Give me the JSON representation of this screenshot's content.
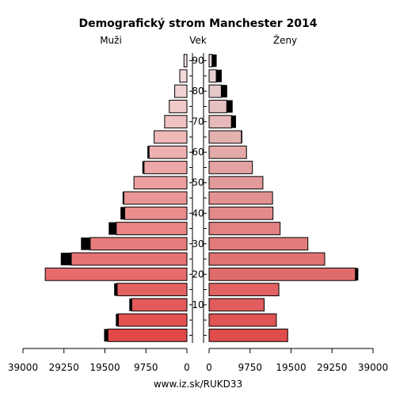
{
  "chart_data": {
    "type": "bar",
    "title": "Demografický strom Manchester 2014",
    "left_label": "Muži",
    "center_label": "Vek",
    "right_label": "Ženy",
    "footer": "www.iz.sk/RUKD33",
    "x_ticks_left": [
      "39000",
      "29250",
      "19500",
      "9750",
      "0"
    ],
    "x_ticks_right": [
      "0",
      "9750",
      "19500",
      "29250",
      "39000"
    ],
    "x_tick_values": [
      39000,
      29250,
      19500,
      9750,
      0
    ],
    "xlim": [
      0,
      39000
    ],
    "age_ticks": [
      "10",
      "20",
      "30",
      "40",
      "50",
      "60",
      "70",
      "80",
      "90"
    ],
    "age_tick_groups": [
      2,
      4,
      6,
      8,
      10,
      12,
      14,
      16,
      18
    ],
    "age_groups": [
      "0-4",
      "5-9",
      "10-14",
      "15-19",
      "20-24",
      "25-29",
      "30-34",
      "35-39",
      "40-44",
      "45-49",
      "50-54",
      "55-59",
      "60-64",
      "65-69",
      "70-74",
      "75-79",
      "80-84",
      "85-89",
      "90+"
    ],
    "series": [
      {
        "name": "Muži",
        "values": [
          18800,
          16300,
          13100,
          16600,
          33700,
          27500,
          23000,
          16800,
          14800,
          15000,
          12600,
          10200,
          9000,
          7800,
          5300,
          4200,
          2900,
          1700,
          700
        ],
        "excess": [
          900,
          600,
          600,
          700,
          0,
          2500,
          2200,
          1800,
          1000,
          300,
          0,
          400,
          400,
          0,
          0,
          0,
          0,
          0,
          0
        ]
      },
      {
        "name": "Ženy",
        "values": [
          18700,
          16000,
          13100,
          16600,
          34800,
          27500,
          23500,
          16900,
          15200,
          15100,
          12800,
          10300,
          8900,
          7700,
          5300,
          4200,
          2900,
          1700,
          700
        ],
        "excess": [
          0,
          0,
          0,
          0,
          700,
          0,
          0,
          0,
          0,
          0,
          0,
          0,
          0,
          200,
          1100,
          1400,
          1400,
          1300,
          1100
        ]
      }
    ]
  }
}
